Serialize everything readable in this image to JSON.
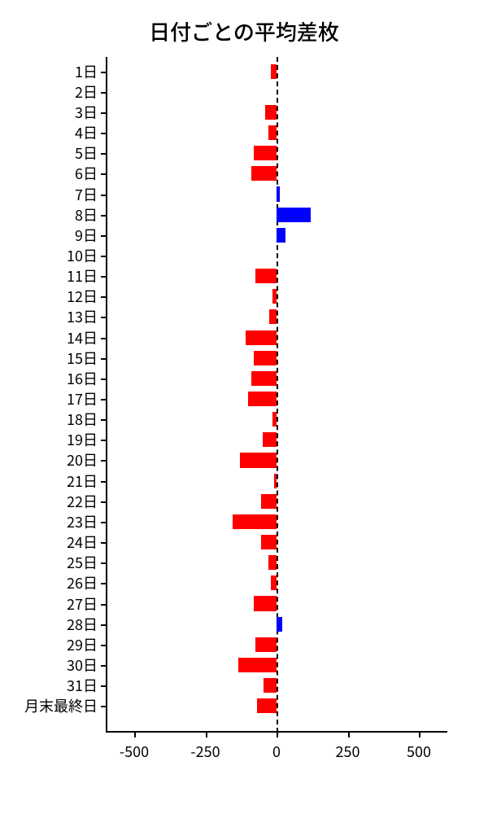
{
  "chart": {
    "type": "bar-horizontal",
    "title": "日付ごとの平均差枚",
    "title_fontsize": 26,
    "label_fontsize": 18,
    "tick_fontsize": 18,
    "background_color": "#ffffff",
    "positive_color": "#0000ff",
    "negative_color": "#ff0000",
    "axis_color": "#000000",
    "zero_line_dash": true,
    "xlim": [
      -600,
      600
    ],
    "xticks": [
      -500,
      -250,
      0,
      250,
      500
    ],
    "xtick_labels": [
      "-500",
      "-250",
      "0",
      "250",
      "500"
    ],
    "bar_width_ratio": 0.72,
    "categories": [
      "1日",
      "2日",
      "3日",
      "4日",
      "5日",
      "6日",
      "7日",
      "8日",
      "9日",
      "10日",
      "11日",
      "12日",
      "13日",
      "14日",
      "15日",
      "16日",
      "17日",
      "18日",
      "19日",
      "20日",
      "21日",
      "22日",
      "23日",
      "24日",
      "25日",
      "26日",
      "27日",
      "28日",
      "29日",
      "30日",
      "31日",
      "月末最終日"
    ],
    "values": [
      -20,
      0,
      -40,
      -30,
      -80,
      -90,
      10,
      120,
      30,
      0,
      -75,
      -15,
      -25,
      -110,
      -80,
      -90,
      -100,
      -15,
      -50,
      -130,
      -10,
      -55,
      -155,
      -55,
      -30,
      -20,
      -80,
      20,
      -75,
      -135,
      -45,
      -70
    ]
  }
}
